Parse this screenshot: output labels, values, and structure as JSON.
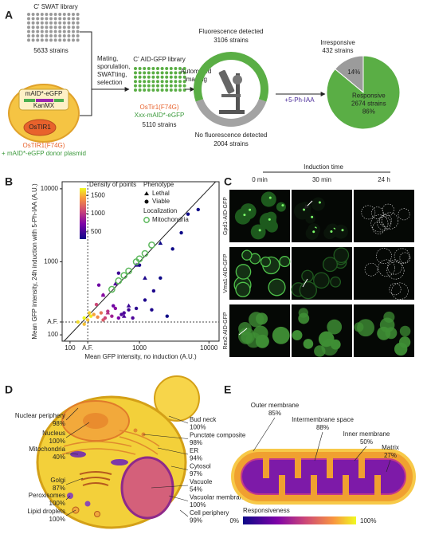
{
  "panel_a": {
    "label": "A",
    "swat_library": "C' SWAT library",
    "swat_count": "5633 strains",
    "plasmid_gene": "mAID*-eGFP",
    "plasmid_marker": "KanMX",
    "host": "OsTIR1",
    "donor_line1": "OsTIR1(F74G)",
    "donor_line2": "+ mAID*-eGFP donor plasmid",
    "process": [
      "Mating,",
      "sporulation,",
      "SWATting,",
      "selection"
    ],
    "aid_library": "C' AID-GFP library",
    "aid_line1": "OsTir1(F74G)",
    "aid_line2": "Xxx-mAID*-eGFP",
    "aid_count": "5110 strains",
    "imaging": [
      "Automated",
      "imaging"
    ],
    "treatment": "+5-Ph-IAA"
  },
  "chart_data": [
    {
      "type": "donut",
      "categories": [
        "Fluorescence detected",
        "No fluorescence detected"
      ],
      "values": [
        3106,
        2004
      ],
      "value_labels": [
        "3106 strains",
        "2004 strains"
      ],
      "colors": [
        "#5aae45",
        "#a3a3a3"
      ]
    },
    {
      "type": "pie",
      "categories": [
        "Irresponsive",
        "Responsive"
      ],
      "values": [
        14,
        86
      ],
      "value_labels": [
        "14%",
        "86%"
      ],
      "counts": [
        "432 strains",
        "2674 strains"
      ],
      "colors": [
        "#9b9b9b",
        "#5aae45"
      ]
    },
    {
      "type": "scatter",
      "panel": "B",
      "x_label": "Mean GFP intensity, no induction (A.U.)",
      "y_label": "Mean GFP intensity, 24h induction with 5-Ph-IAA (A.U.)",
      "xscale": "log",
      "yscale": "log",
      "xlim": [
        77,
        14000
      ],
      "ylim": [
        82,
        12500
      ],
      "xticks": [
        100,
        {
          "value": 180,
          "label": "A.F."
        },
        1000,
        10000
      ],
      "yticks": [
        100,
        {
          "value": 150,
          "label": "A.F."
        },
        1000,
        10000
      ],
      "colorbar": {
        "title": "Density of points",
        "lim": [
          300,
          1700
        ],
        "ticks": [
          500,
          1000,
          1500
        ]
      },
      "legend_titles": [
        "Phenotype",
        "Localization"
      ],
      "series": [
        {
          "name": "Lethal",
          "marker": "triangle",
          "x": [
            300,
            450,
            700,
            900,
            1200,
            600,
            2000,
            350
          ],
          "y": [
            350,
            500,
            250,
            900,
            600,
            180,
            1800,
            200
          ],
          "density": [
            600,
            500,
            450,
            400,
            350,
            500,
            300,
            900
          ]
        },
        {
          "name": "Viable",
          "marker": "circle",
          "x": [
            130,
            160,
            180,
            200,
            220,
            250,
            280,
            300,
            350,
            400,
            450,
            500,
            600,
            700,
            160,
            190,
            240,
            320,
            420,
            550,
            900,
            1200,
            1600,
            2000,
            3000,
            5000,
            800,
            1500,
            2500,
            300,
            500,
            1000,
            4000,
            7000,
            260
          ],
          "y": [
            150,
            170,
            160,
            180,
            190,
            175,
            200,
            160,
            210,
            180,
            230,
            170,
            200,
            220,
            140,
            200,
            260,
            170,
            250,
            190,
            230,
            300,
            400,
            600,
            1500,
            4500,
            170,
            220,
            180,
            350,
            700,
            900,
            2500,
            5200,
            480
          ],
          "density": [
            1600,
            1700,
            1500,
            1650,
            1400,
            1300,
            1200,
            1100,
            900,
            800,
            700,
            650,
            500,
            450,
            1500,
            1550,
            1000,
            1000,
            600,
            500,
            400,
            350,
            350,
            300,
            300,
            300,
            500,
            350,
            300,
            700,
            450,
            350,
            300,
            300,
            600
          ]
        }
      ],
      "highlight": {
        "name": "Mitochondria",
        "color": "#5cb85c",
        "x": [
          500,
          700,
          900,
          1200,
          600,
          1000,
          1500,
          400
        ],
        "y": [
          550,
          750,
          1000,
          1300,
          650,
          1100,
          1700,
          420
        ]
      }
    }
  ],
  "panel_c": {
    "label": "C",
    "title": "Induction time",
    "columns": [
      "0 min",
      "30 min",
      "24 h"
    ],
    "rows": [
      "Gpd1-AID-GFP",
      "Vma1-AID-GFP",
      "Rex2-AID-GFP"
    ]
  },
  "panel_d": {
    "label": "D",
    "left": [
      {
        "name": "Nuclear periphery",
        "value": "98%"
      },
      {
        "name": "Nucleus",
        "value": "100%"
      },
      {
        "name": "Mitochondria",
        "value": "40%"
      },
      {
        "name": "Golgi",
        "value": "87%"
      },
      {
        "name": "Peroxisomes",
        "value": "100%"
      },
      {
        "name": "Lipid droplets",
        "value": "100%"
      }
    ],
    "right": [
      {
        "name": "Bud neck",
        "value": "100%"
      },
      {
        "name": "Punctate composite",
        "value": "98%"
      },
      {
        "name": "ER",
        "value": "94%"
      },
      {
        "name": "Cytosol",
        "value": "97%"
      },
      {
        "name": "Vacuole",
        "value": "54%"
      },
      {
        "name": "Vacuolar membrane",
        "value": "100%"
      },
      {
        "name": "Cell periphery",
        "value": "99%"
      }
    ]
  },
  "panel_e": {
    "label": "E",
    "labels": [
      {
        "name": "Outer membrane",
        "value": "85%"
      },
      {
        "name": "Intermembrane space",
        "value": "88%"
      },
      {
        "name": "Inner membrane",
        "value": "50%"
      },
      {
        "name": "Matrix",
        "value": "27%"
      }
    ],
    "colorbar": {
      "title": "Responsiveness",
      "min": "0%",
      "max": "100%"
    }
  }
}
